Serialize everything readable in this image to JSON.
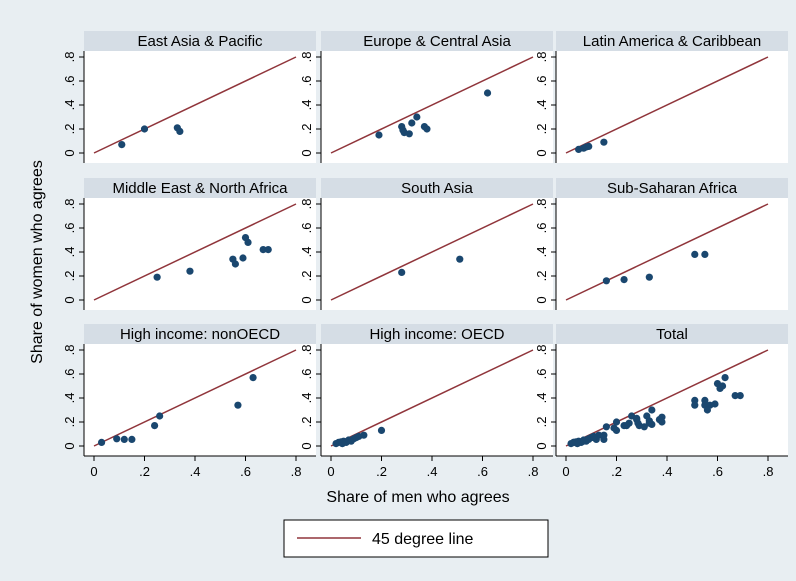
{
  "colors": {
    "background": "#e8eef2",
    "panel": "#ffffff",
    "strip": "#d5dde5",
    "points": "#1a476f",
    "line": "#90353b"
  },
  "chart_data": {
    "type": "scatter",
    "layout": "3x3 facet grid",
    "xlabel": "Share of men who agrees",
    "ylabel": "Share of women who agrees",
    "xlim": [
      0,
      0.8
    ],
    "ylim": [
      0,
      0.8
    ],
    "x_ticks": [
      0,
      0.2,
      0.4,
      0.6,
      0.8
    ],
    "y_ticks": [
      0,
      0.2,
      0.4,
      0.6,
      0.8
    ],
    "x_tick_labels": [
      "0",
      ".2",
      ".4",
      ".6",
      ".8"
    ],
    "y_tick_labels": [
      "0",
      ".2",
      ".4",
      ".6",
      ".8"
    ],
    "reference_line": {
      "name": "45 degree line",
      "from": [
        0,
        0
      ],
      "to": [
        0.8,
        0.8
      ]
    },
    "legend": {
      "position": "bottom",
      "entries": [
        "45 degree line"
      ]
    },
    "panels": [
      {
        "title": "East Asia & Pacific",
        "points": [
          [
            0.11,
            0.07
          ],
          [
            0.2,
            0.2
          ],
          [
            0.33,
            0.21
          ],
          [
            0.34,
            0.18
          ]
        ]
      },
      {
        "title": "Europe & Central Asia",
        "points": [
          [
            0.19,
            0.15
          ],
          [
            0.28,
            0.22
          ],
          [
            0.285,
            0.19
          ],
          [
            0.29,
            0.17
          ],
          [
            0.31,
            0.16
          ],
          [
            0.32,
            0.25
          ],
          [
            0.34,
            0.3
          ],
          [
            0.37,
            0.22
          ],
          [
            0.38,
            0.2
          ],
          [
            0.62,
            0.5
          ]
        ]
      },
      {
        "title": "Latin America & Caribbean",
        "points": [
          [
            0.05,
            0.03
          ],
          [
            0.07,
            0.04
          ],
          [
            0.08,
            0.05
          ],
          [
            0.09,
            0.055
          ],
          [
            0.15,
            0.09
          ]
        ]
      },
      {
        "title": "Middle East & North Africa",
        "points": [
          [
            0.25,
            0.19
          ],
          [
            0.38,
            0.24
          ],
          [
            0.55,
            0.34
          ],
          [
            0.56,
            0.3
          ],
          [
            0.59,
            0.35
          ],
          [
            0.6,
            0.52
          ],
          [
            0.61,
            0.48
          ],
          [
            0.67,
            0.42
          ],
          [
            0.69,
            0.42
          ]
        ]
      },
      {
        "title": "South Asia",
        "points": [
          [
            0.28,
            0.23
          ],
          [
            0.51,
            0.34
          ]
        ]
      },
      {
        "title": "Sub-Saharan Africa",
        "points": [
          [
            0.16,
            0.16
          ],
          [
            0.23,
            0.17
          ],
          [
            0.33,
            0.19
          ],
          [
            0.51,
            0.38
          ],
          [
            0.55,
            0.38
          ]
        ]
      },
      {
        "title": "High income: nonOECD",
        "points": [
          [
            0.03,
            0.03
          ],
          [
            0.09,
            0.06
          ],
          [
            0.12,
            0.055
          ],
          [
            0.15,
            0.055
          ],
          [
            0.24,
            0.17
          ],
          [
            0.26,
            0.25
          ],
          [
            0.57,
            0.34
          ],
          [
            0.63,
            0.57
          ]
        ]
      },
      {
        "title": "High income: OECD",
        "points": [
          [
            0.02,
            0.02
          ],
          [
            0.03,
            0.03
          ],
          [
            0.04,
            0.035
          ],
          [
            0.045,
            0.02
          ],
          [
            0.05,
            0.04
          ],
          [
            0.06,
            0.03
          ],
          [
            0.07,
            0.05
          ],
          [
            0.08,
            0.04
          ],
          [
            0.09,
            0.06
          ],
          [
            0.1,
            0.07
          ],
          [
            0.11,
            0.08
          ],
          [
            0.13,
            0.09
          ],
          [
            0.2,
            0.13
          ]
        ]
      },
      {
        "title": "Total",
        "points": [
          [
            0.02,
            0.02
          ],
          [
            0.03,
            0.03
          ],
          [
            0.04,
            0.035
          ],
          [
            0.045,
            0.02
          ],
          [
            0.05,
            0.04
          ],
          [
            0.06,
            0.03
          ],
          [
            0.07,
            0.05
          ],
          [
            0.08,
            0.04
          ],
          [
            0.09,
            0.06
          ],
          [
            0.1,
            0.07
          ],
          [
            0.11,
            0.08
          ],
          [
            0.13,
            0.09
          ],
          [
            0.2,
            0.13
          ],
          [
            0.03,
            0.03
          ],
          [
            0.09,
            0.06
          ],
          [
            0.12,
            0.055
          ],
          [
            0.15,
            0.055
          ],
          [
            0.24,
            0.17
          ],
          [
            0.26,
            0.25
          ],
          [
            0.57,
            0.34
          ],
          [
            0.63,
            0.57
          ],
          [
            0.16,
            0.16
          ],
          [
            0.23,
            0.17
          ],
          [
            0.33,
            0.19
          ],
          [
            0.51,
            0.38
          ],
          [
            0.55,
            0.38
          ],
          [
            0.28,
            0.23
          ],
          [
            0.51,
            0.34
          ],
          [
            0.25,
            0.19
          ],
          [
            0.38,
            0.24
          ],
          [
            0.55,
            0.34
          ],
          [
            0.56,
            0.3
          ],
          [
            0.59,
            0.35
          ],
          [
            0.6,
            0.52
          ],
          [
            0.61,
            0.48
          ],
          [
            0.67,
            0.42
          ],
          [
            0.69,
            0.42
          ],
          [
            0.05,
            0.03
          ],
          [
            0.07,
            0.04
          ],
          [
            0.08,
            0.05
          ],
          [
            0.09,
            0.055
          ],
          [
            0.15,
            0.09
          ],
          [
            0.19,
            0.15
          ],
          [
            0.28,
            0.22
          ],
          [
            0.285,
            0.19
          ],
          [
            0.29,
            0.17
          ],
          [
            0.31,
            0.16
          ],
          [
            0.32,
            0.25
          ],
          [
            0.34,
            0.3
          ],
          [
            0.37,
            0.22
          ],
          [
            0.38,
            0.2
          ],
          [
            0.62,
            0.5
          ],
          [
            0.11,
            0.07
          ],
          [
            0.2,
            0.2
          ],
          [
            0.33,
            0.21
          ],
          [
            0.34,
            0.18
          ]
        ]
      }
    ]
  }
}
